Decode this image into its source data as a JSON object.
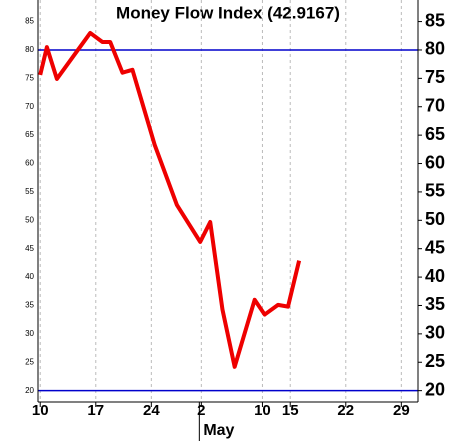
{
  "chart_data": {
    "type": "line",
    "title": "Money Flow Index (42.9167)",
    "x": [
      0,
      0.6,
      1.5,
      4.5,
      5.6,
      6.3,
      7.4,
      8.3,
      10.3,
      12.3,
      14.4,
      15.3,
      16.4,
      17.5,
      19.3,
      20.2,
      21.4,
      22.3,
      23.3
    ],
    "series": [
      {
        "name": "Money Flow Index",
        "color": "#ee0000",
        "values": [
          75.6,
          80.5,
          74.9,
          83.0,
          81.4,
          81.4,
          76.0,
          76.5,
          63.3,
          52.7,
          46.2,
          49.7,
          34.3,
          24.2,
          36.0,
          33.4,
          35.1,
          34.8,
          42.9
        ]
      }
    ],
    "xlim": [
      -0.2,
      34
    ],
    "xticks": [
      {
        "value": 0,
        "label": "10"
      },
      {
        "value": 5,
        "label": "17"
      },
      {
        "value": 10,
        "label": "24"
      },
      {
        "value": 14.5,
        "label": "2"
      },
      {
        "value": 20,
        "label": "10"
      },
      {
        "value": 22.5,
        "label": "15"
      },
      {
        "value": 27.5,
        "label": "22"
      },
      {
        "value": 32.5,
        "label": "29"
      }
    ],
    "month_label": "May",
    "ylim": [
      18,
      88.8
    ],
    "yticks": [
      20,
      25,
      30,
      35,
      40,
      45,
      50,
      55,
      60,
      65,
      70,
      75,
      80,
      85
    ],
    "reference_lines": [
      80,
      20
    ],
    "reference_color": "#0000cc",
    "grid": true
  }
}
